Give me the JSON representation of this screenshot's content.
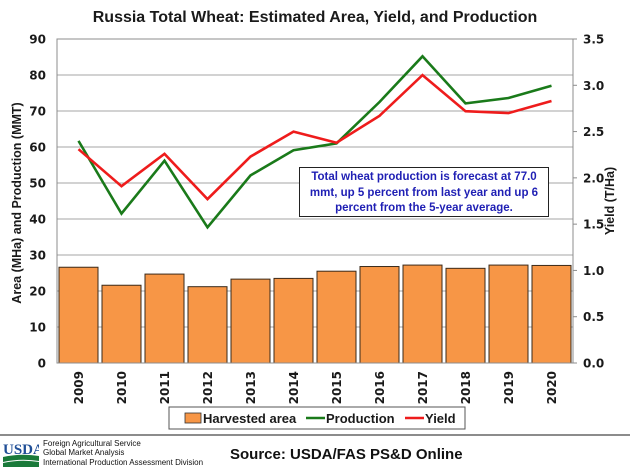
{
  "chart_data": {
    "type": "bar",
    "title": "Russia Total Wheat: Estimated Area, Yield, and Production",
    "categories": [
      "2009",
      "2010",
      "2011",
      "2012",
      "2013",
      "2014",
      "2015",
      "2016",
      "2017",
      "2018",
      "2019",
      "2020"
    ],
    "series": [
      {
        "name": "Harvested area",
        "type": "bar",
        "axis": "left",
        "color": "#f79646",
        "values": [
          26.6,
          21.6,
          24.7,
          21.2,
          23.3,
          23.5,
          25.5,
          26.8,
          27.2,
          26.3,
          27.2,
          27.1
        ]
      },
      {
        "name": "Production",
        "type": "line",
        "axis": "left",
        "color": "#1a7a1a",
        "values": [
          61.7,
          41.5,
          56.2,
          37.7,
          52.1,
          59.1,
          61.0,
          72.5,
          85.2,
          72.1,
          73.6,
          77.0
        ]
      },
      {
        "name": "Yield",
        "type": "line",
        "axis": "right",
        "color": "#ee1c1c",
        "values": [
          2.31,
          1.91,
          2.26,
          1.77,
          2.23,
          2.5,
          2.38,
          2.67,
          3.11,
          2.72,
          2.7,
          2.83
        ]
      }
    ],
    "ylabel": "Area (MHa) and Production (MMT)",
    "ylim": [
      0,
      90
    ],
    "yticks": [
      "0",
      "10",
      "20",
      "30",
      "40",
      "50",
      "60",
      "70",
      "80",
      "90"
    ],
    "y2label": "Yield (T/Ha)",
    "y2lim": [
      0,
      3.5
    ],
    "y2ticks": [
      "0.0",
      "0.5",
      "1.0",
      "1.5",
      "2.0",
      "2.5",
      "3.0",
      "3.5"
    ],
    "xlabel": "",
    "grid": true,
    "legend_position": "bottom",
    "annotation": "Total wheat production is forecast at 77.0 mmt, up 5 percent from last year and up 6 percent from the 5-year average."
  },
  "note": {
    "line1": "Total wheat production is forecast at 77.0",
    "line2": "mmt, up 5 percent from last year and up 6",
    "line3": "percent from the 5-year average."
  },
  "footer": {
    "logo_text": "USDA",
    "org_line1": "Foreign Agricultural Service",
    "org_line2": "Global Market Analysis",
    "org_line3": "International Production Assessment Division",
    "source": "Source: USDA/FAS PS&D Online"
  }
}
